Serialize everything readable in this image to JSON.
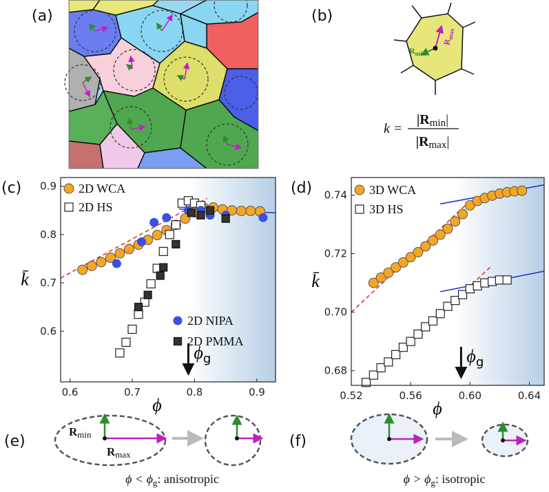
{
  "panel_labels": {
    "a": "(a)",
    "b": "(b)",
    "c": "(c)",
    "d": "(d)",
    "e": "(e)",
    "f": "(f)"
  },
  "diagram_b": {
    "r_min": "R",
    "r_min_sub": "min",
    "r_max": "R",
    "r_max_sub": "max",
    "formula": {
      "lhs": "k =",
      "num": "|R",
      "num_sub": "min",
      "num_end": "|",
      "den": "|R",
      "den_sub": "max",
      "den_end": "|"
    }
  },
  "diagram_e": {
    "r_min": "R",
    "r_min_sub": "min",
    "r_max": "R",
    "r_max_sub": "max",
    "caption_pre": "ϕ < ϕ",
    "caption_sub": "g",
    "caption_post": ": anisotropic"
  },
  "diagram_f": {
    "caption_pre": "ϕ > ϕ",
    "caption_sub": "g",
    "caption_post": ": isotropic"
  },
  "chart_data": [
    {
      "type": "scatter",
      "x_label": "ϕ",
      "y_label": "k̄",
      "xlim": [
        0.585,
        0.93
      ],
      "ylim": [
        0.495,
        0.918
      ],
      "xticks": [
        0.6,
        0.7,
        0.8,
        0.9
      ],
      "yticks": [
        0.6,
        0.7,
        0.8,
        0.9
      ],
      "shade_from": 0.79,
      "annotation": {
        "text": "ϕ",
        "sub": "g",
        "x": 0.79
      },
      "series": [
        {
          "name": "2D WCA",
          "color": "#f5a623",
          "marker": "o",
          "x": [
            0.62,
            0.635,
            0.65,
            0.665,
            0.68,
            0.695,
            0.71,
            0.725,
            0.74,
            0.755,
            0.77,
            0.785,
            0.8,
            0.815,
            0.83,
            0.845,
            0.86,
            0.875,
            0.89,
            0.905
          ],
          "values": [
            0.727,
            0.735,
            0.743,
            0.752,
            0.761,
            0.77,
            0.779,
            0.789,
            0.799,
            0.809,
            0.82,
            0.833,
            0.846,
            0.855,
            0.856,
            0.852,
            0.85,
            0.849,
            0.849,
            0.848
          ]
        },
        {
          "name": "2D HS",
          "color": "#ffffff",
          "marker": "s",
          "x": [
            0.68,
            0.69,
            0.7,
            0.71,
            0.72,
            0.73,
            0.74,
            0.75,
            0.76,
            0.77,
            0.78,
            0.79,
            0.8,
            0.81
          ],
          "values": [
            0.555,
            0.577,
            0.604,
            0.635,
            0.66,
            0.698,
            0.73,
            0.765,
            0.8,
            0.82,
            0.865,
            0.87,
            0.865,
            0.86
          ]
        },
        {
          "name": "2D NIPA",
          "color": "#3b4fe0",
          "marker": "o",
          "x": [
            0.675,
            0.715,
            0.735,
            0.755,
            0.79,
            0.81,
            0.825,
            0.85,
            0.91
          ],
          "values": [
            0.74,
            0.785,
            0.825,
            0.835,
            0.85,
            0.85,
            0.84,
            0.84,
            0.835
          ]
        },
        {
          "name": "2D PMMA",
          "color": "#333333",
          "marker": "s",
          "x": [
            0.71,
            0.725,
            0.745,
            0.75,
            0.77,
            0.795,
            0.81,
            0.825,
            0.85
          ],
          "values": [
            0.65,
            0.675,
            0.715,
            0.732,
            0.78,
            0.845,
            0.84,
            0.85,
            0.833
          ]
        }
      ],
      "fits": [
        {
          "color": "#e03030",
          "style": "dashed",
          "x": [
            0.585,
            0.82
          ],
          "values": [
            0.71,
            0.875
          ]
        },
        {
          "color": "#2233cc",
          "style": "solid",
          "x": [
            0.775,
            0.93
          ],
          "values": [
            0.853,
            0.845
          ]
        }
      ]
    },
    {
      "type": "scatter",
      "x_label": "ϕ",
      "y_label": "k̄",
      "xlim": [
        0.52,
        0.65
      ],
      "ylim": [
        0.675,
        0.746
      ],
      "xticks": [
        0.52,
        0.56,
        {
          "value": 0.6,
          "label": "0.60"
        },
        0.64
      ],
      "yticks": [
        0.68,
        {
          "value": 0.7,
          "label": "0.70"
        },
        0.72,
        0.74
      ],
      "shade_from": 0.59,
      "annotation": {
        "text": "ϕ",
        "sub": "g",
        "x": 0.594
      },
      "series": [
        {
          "name": "3D WCA",
          "color": "#f5a623",
          "marker": "o",
          "x": [
            0.535,
            0.54,
            0.545,
            0.55,
            0.555,
            0.56,
            0.565,
            0.57,
            0.575,
            0.58,
            0.585,
            0.59,
            0.595,
            0.6,
            0.605,
            0.61,
            0.615,
            0.62,
            0.625,
            0.63,
            0.635
          ],
          "values": [
            0.71,
            0.7118,
            0.7135,
            0.7153,
            0.717,
            0.7188,
            0.7205,
            0.7225,
            0.7245,
            0.7265,
            0.7285,
            0.731,
            0.7335,
            0.7365,
            0.738,
            0.739,
            0.7398,
            0.7405,
            0.741,
            0.7413,
            0.7415
          ]
        },
        {
          "name": "3D HS",
          "color": "#ffffff",
          "marker": "s",
          "x": [
            0.53,
            0.535,
            0.54,
            0.545,
            0.55,
            0.555,
            0.56,
            0.565,
            0.57,
            0.575,
            0.58,
            0.585,
            0.59,
            0.595,
            0.6,
            0.605,
            0.61,
            0.615,
            0.62,
            0.625
          ],
          "values": [
            0.676,
            0.6785,
            0.681,
            0.683,
            0.6855,
            0.688,
            0.69,
            0.6925,
            0.695,
            0.697,
            0.6995,
            0.702,
            0.704,
            0.706,
            0.708,
            0.709,
            0.71,
            0.7105,
            0.711,
            0.711
          ]
        }
      ],
      "fits": [
        {
          "color": "#e03030",
          "style": "dashed",
          "x": [
            0.52,
            0.6
          ],
          "values": [
            0.7,
            0.738
          ]
        },
        {
          "color": "#e03030",
          "style": "dashed",
          "x": [
            0.52,
            0.615
          ],
          "values": [
            0.671,
            0.716
          ]
        },
        {
          "color": "#2233cc",
          "style": "solid",
          "x": [
            0.58,
            0.65
          ],
          "values": [
            0.737,
            0.7435
          ]
        },
        {
          "color": "#2233cc",
          "style": "solid",
          "x": [
            0.58,
            0.65
          ],
          "values": [
            0.707,
            0.714
          ]
        }
      ]
    }
  ]
}
